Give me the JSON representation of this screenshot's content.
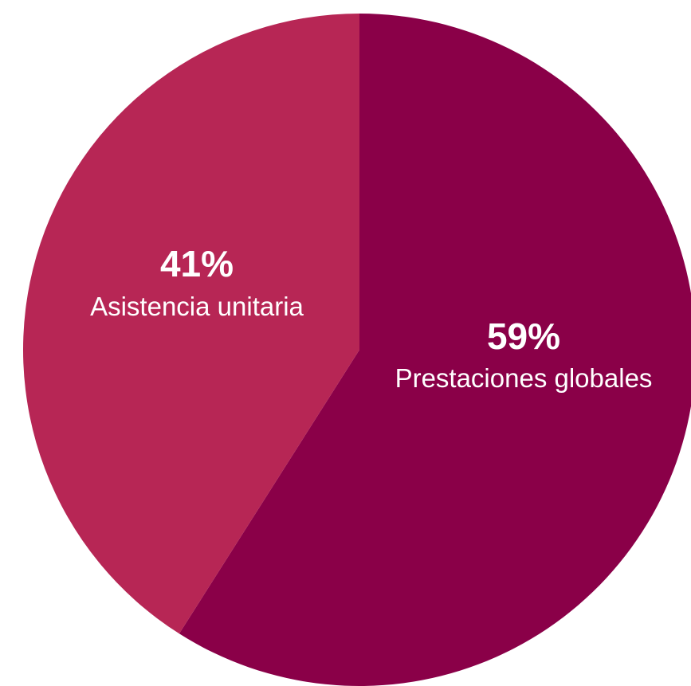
{
  "chart_data": {
    "type": "pie",
    "categories": [
      "Prestaciones globales",
      "Asistencia unitaria"
    ],
    "values": [
      59,
      41
    ],
    "value_labels": [
      "59%",
      "41%"
    ],
    "colors": [
      "#8a0048",
      "#b72655"
    ],
    "start": "top",
    "direction": "clockwise",
    "legend": "none"
  }
}
